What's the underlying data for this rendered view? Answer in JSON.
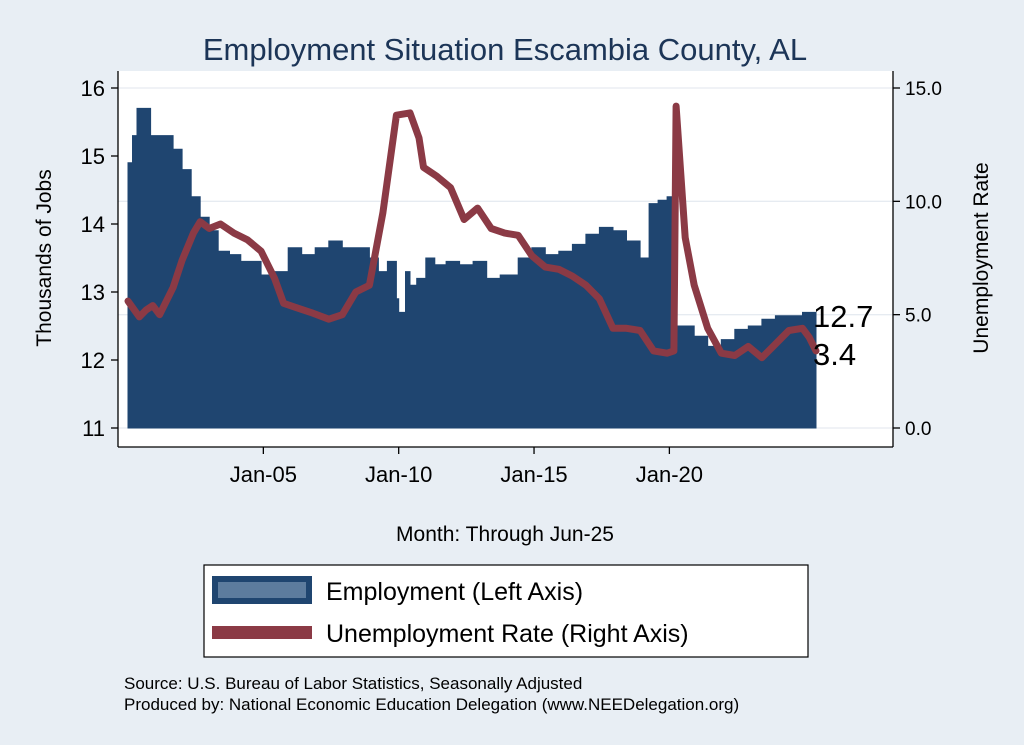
{
  "chart_data": {
    "type": "bar+line",
    "title": "Employment Situation Escambia  County, AL",
    "xlabel": "Month: Through Jun-25",
    "ylabel_left": "Thousands of Jobs",
    "ylabel_right": "Unemployment Rate",
    "y_left_range": [
      11,
      16
    ],
    "y_left_ticks": [
      "11",
      "12",
      "13",
      "14",
      "15",
      "16"
    ],
    "y_right_range": [
      0,
      15
    ],
    "y_right_ticks": [
      "0.0",
      "5.0",
      "10.0",
      "15.0"
    ],
    "x_ticks": [
      "Jan-05",
      "Jan-10",
      "Jan-15",
      "Jan-20"
    ],
    "x_start": "2000-01",
    "x_end": "2025-06",
    "grid": true,
    "legend_position": "bottom",
    "series": [
      {
        "name": "Employment (Left Axis)",
        "type": "area",
        "axis": "left",
        "color": "#1f4570",
        "points": [
          [
            "2000-01",
            14.9
          ],
          [
            "2000-03",
            15.3
          ],
          [
            "2000-05",
            15.7
          ],
          [
            "2000-09",
            15.7
          ],
          [
            "2000-11",
            15.3
          ],
          [
            "2001-06",
            15.3
          ],
          [
            "2001-09",
            15.1
          ],
          [
            "2002-01",
            14.8
          ],
          [
            "2002-05",
            14.4
          ],
          [
            "2002-09",
            14.1
          ],
          [
            "2003-01",
            13.9
          ],
          [
            "2003-05",
            13.6
          ],
          [
            "2003-10",
            13.55
          ],
          [
            "2004-03",
            13.45
          ],
          [
            "2004-10",
            13.45
          ],
          [
            "2004-12",
            13.25
          ],
          [
            "2005-06",
            13.3
          ],
          [
            "2005-12",
            13.65
          ],
          [
            "2006-06",
            13.55
          ],
          [
            "2006-12",
            13.65
          ],
          [
            "2007-06",
            13.75
          ],
          [
            "2007-12",
            13.65
          ],
          [
            "2008-06",
            13.65
          ],
          [
            "2008-12",
            13.5
          ],
          [
            "2009-04",
            13.3
          ],
          [
            "2009-08",
            13.45
          ],
          [
            "2009-12",
            12.9
          ],
          [
            "2010-01",
            12.7
          ],
          [
            "2010-04",
            13.3
          ],
          [
            "2010-06",
            13.1
          ],
          [
            "2010-09",
            13.2
          ],
          [
            "2011-01",
            13.5
          ],
          [
            "2011-05",
            13.4
          ],
          [
            "2011-10",
            13.45
          ],
          [
            "2012-04",
            13.4
          ],
          [
            "2012-10",
            13.45
          ],
          [
            "2013-04",
            13.2
          ],
          [
            "2013-10",
            13.25
          ],
          [
            "2014-06",
            13.5
          ],
          [
            "2014-12",
            13.65
          ],
          [
            "2015-06",
            13.55
          ],
          [
            "2015-12",
            13.6
          ],
          [
            "2016-06",
            13.7
          ],
          [
            "2016-12",
            13.85
          ],
          [
            "2017-06",
            13.95
          ],
          [
            "2017-12",
            13.9
          ],
          [
            "2018-06",
            13.75
          ],
          [
            "2018-12",
            13.5
          ],
          [
            "2019-04",
            14.3
          ],
          [
            "2019-08",
            14.35
          ],
          [
            "2019-12",
            14.4
          ],
          [
            "2020-03",
            14.2
          ],
          [
            "2020-04",
            12.5
          ],
          [
            "2020-12",
            12.35
          ],
          [
            "2021-06",
            12.2
          ],
          [
            "2021-12",
            12.3
          ],
          [
            "2022-06",
            12.45
          ],
          [
            "2022-12",
            12.5
          ],
          [
            "2023-06",
            12.6
          ],
          [
            "2023-12",
            12.65
          ],
          [
            "2024-06",
            12.65
          ],
          [
            "2024-12",
            12.7
          ],
          [
            "2025-06",
            12.7
          ]
        ]
      },
      {
        "name": "Unemployment Rate (Right Axis)",
        "type": "line",
        "axis": "right",
        "color": "#8b3a45",
        "points": [
          [
            "2000-01",
            5.6
          ],
          [
            "2000-06",
            4.9
          ],
          [
            "2000-09",
            5.2
          ],
          [
            "2000-12",
            5.4
          ],
          [
            "2001-03",
            5.0
          ],
          [
            "2001-09",
            6.2
          ],
          [
            "2002-01",
            7.4
          ],
          [
            "2002-06",
            8.6
          ],
          [
            "2002-09",
            9.1
          ],
          [
            "2003-01",
            8.8
          ],
          [
            "2003-06",
            9.0
          ],
          [
            "2003-12",
            8.6
          ],
          [
            "2004-06",
            8.3
          ],
          [
            "2004-12",
            7.8
          ],
          [
            "2005-06",
            6.6
          ],
          [
            "2005-10",
            5.5
          ],
          [
            "2006-04",
            5.3
          ],
          [
            "2006-10",
            5.1
          ],
          [
            "2007-06",
            4.8
          ],
          [
            "2007-12",
            5.0
          ],
          [
            "2008-06",
            6.0
          ],
          [
            "2008-12",
            6.3
          ],
          [
            "2009-06",
            9.5
          ],
          [
            "2009-12",
            13.8
          ],
          [
            "2010-06",
            13.9
          ],
          [
            "2010-10",
            12.8
          ],
          [
            "2010-12",
            11.5
          ],
          [
            "2011-06",
            11.1
          ],
          [
            "2011-12",
            10.6
          ],
          [
            "2012-06",
            9.2
          ],
          [
            "2012-12",
            9.7
          ],
          [
            "2013-06",
            8.8
          ],
          [
            "2013-12",
            8.6
          ],
          [
            "2014-06",
            8.5
          ],
          [
            "2014-12",
            7.6
          ],
          [
            "2015-06",
            7.1
          ],
          [
            "2015-12",
            7.0
          ],
          [
            "2016-06",
            6.7
          ],
          [
            "2016-12",
            6.3
          ],
          [
            "2017-06",
            5.7
          ],
          [
            "2017-12",
            4.4
          ],
          [
            "2018-06",
            4.4
          ],
          [
            "2018-12",
            4.3
          ],
          [
            "2019-06",
            3.4
          ],
          [
            "2019-12",
            3.3
          ],
          [
            "2020-03",
            3.4
          ],
          [
            "2020-04",
            14.2
          ],
          [
            "2020-08",
            8.4
          ],
          [
            "2020-12",
            6.3
          ],
          [
            "2021-06",
            4.4
          ],
          [
            "2021-12",
            3.3
          ],
          [
            "2022-06",
            3.2
          ],
          [
            "2022-12",
            3.6
          ],
          [
            "2023-06",
            3.1
          ],
          [
            "2023-12",
            3.7
          ],
          [
            "2024-06",
            4.3
          ],
          [
            "2024-12",
            4.4
          ],
          [
            "2025-03",
            4.0
          ],
          [
            "2025-06",
            3.4
          ]
        ]
      }
    ],
    "end_labels": {
      "employment": "12.7",
      "unemployment": "3.4"
    }
  },
  "legend": {
    "items": [
      {
        "label": "Employment (Left Axis)",
        "color": "#1f4570"
      },
      {
        "label": "Unemployment Rate (Right Axis)",
        "color": "#8b3a45"
      }
    ]
  },
  "footer": {
    "line1": "Source: U.S. Bureau of Labor Statistics, Seasonally Adjusted",
    "line2": "Produced by: National Economic Education Delegation (www.NEEDelegation.org)"
  }
}
